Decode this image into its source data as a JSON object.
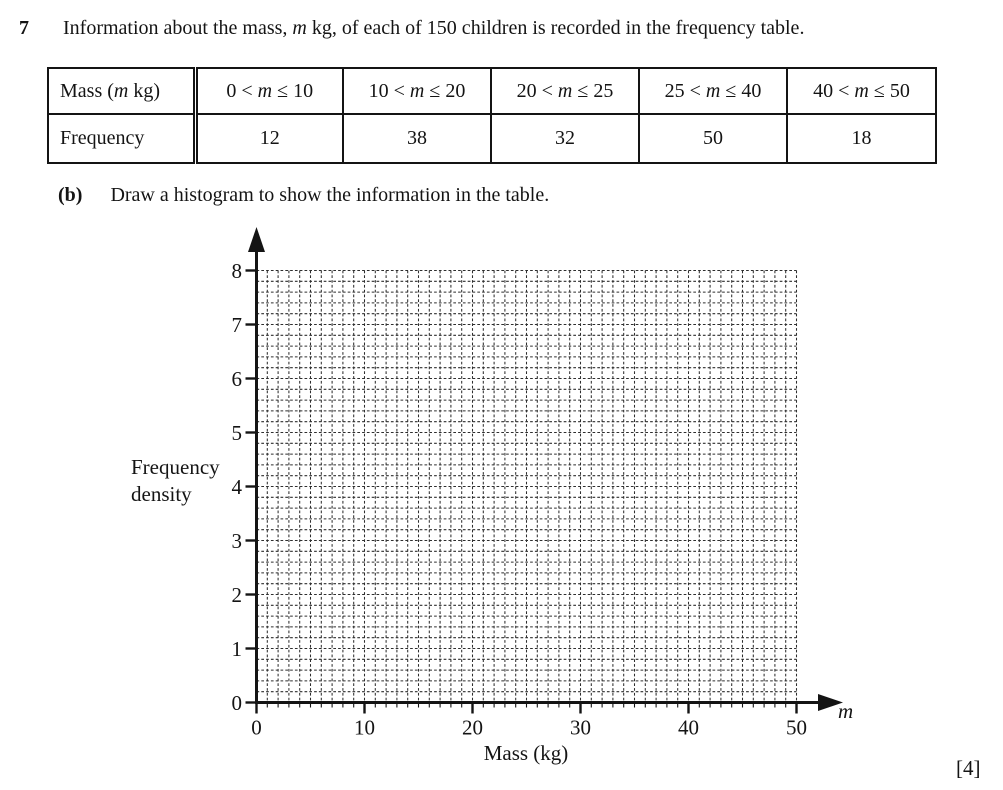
{
  "page": {
    "question_number": "7",
    "question_text": "Information about the mass, m kg, of each of 150 children is recorded in the frequency table.",
    "part_label": "(b)",
    "part_text": "Draw a histogram to show the information in the table.",
    "marks": "[4]"
  },
  "table": {
    "row_headers": [
      "Mass (m kg)",
      "Frequency"
    ],
    "intervals": [
      "0 < m ≤ 10",
      "10 < m ≤ 20",
      "20 < m ≤ 25",
      "25 < m ≤ 40",
      "40 < m ≤ 50"
    ],
    "frequencies": [
      "12",
      "38",
      "32",
      "50",
      "18"
    ]
  },
  "chart_data": {
    "type": "histogram",
    "title": "",
    "xlabel": "Mass (kg)",
    "x_axis_variable": "m",
    "ylabel": "Frequency density",
    "xlim": [
      0,
      50
    ],
    "ylim": [
      0,
      8
    ],
    "x_ticks": [
      0,
      10,
      20,
      30,
      40,
      50
    ],
    "y_ticks": [
      0,
      1,
      2,
      3,
      4,
      5,
      6,
      7,
      8
    ],
    "minor_step_x": 1,
    "minor_step_y": 0.2,
    "grid": "fine dashed square grid, 1 kg wide × 0.2 frequency-density tall per cell",
    "bars": [],
    "note": "empty answer grid — no bars drawn; student must plot class intervals 0-10,10-20,20-25,25-40,40-50 with frequencies 12,38,32,50,18"
  }
}
